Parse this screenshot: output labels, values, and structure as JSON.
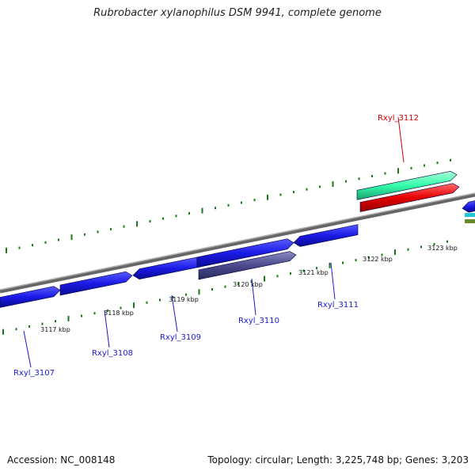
{
  "title": "Rubrobacter xylanophilus DSM 9941, complete genome",
  "footer": {
    "accession": "Accession: NC_008148",
    "topology": "Topology: circular; Length: 3,225,748 bp; Genes: 3,203"
  },
  "colors": {
    "backbone": "#808080",
    "tick": "#1a7a1a",
    "gene_forward": "#1a1ae6",
    "gene_reverse": "#4a4a8e",
    "highlight_red": "#e60000",
    "highlight_teal": "#33ffaa",
    "label_blue": "#1a1acc",
    "label_red": "#cc0000"
  },
  "tick_labels": [
    "3117 kbp",
    "3118 kbp",
    "3119 kbp",
    "3120 kbp",
    "3121 kbp",
    "3122 kbp",
    "3123 kbp"
  ],
  "gene_labels": [
    {
      "name": "Rxyl_3107",
      "color": "blue"
    },
    {
      "name": "Rxyl_3108",
      "color": "blue"
    },
    {
      "name": "Rxyl_3109",
      "color": "blue"
    },
    {
      "name": "Rxyl_3110",
      "color": "blue"
    },
    {
      "name": "Rxyl_3111",
      "color": "blue"
    },
    {
      "name": "Rxyl_3112",
      "color": "red"
    }
  ]
}
